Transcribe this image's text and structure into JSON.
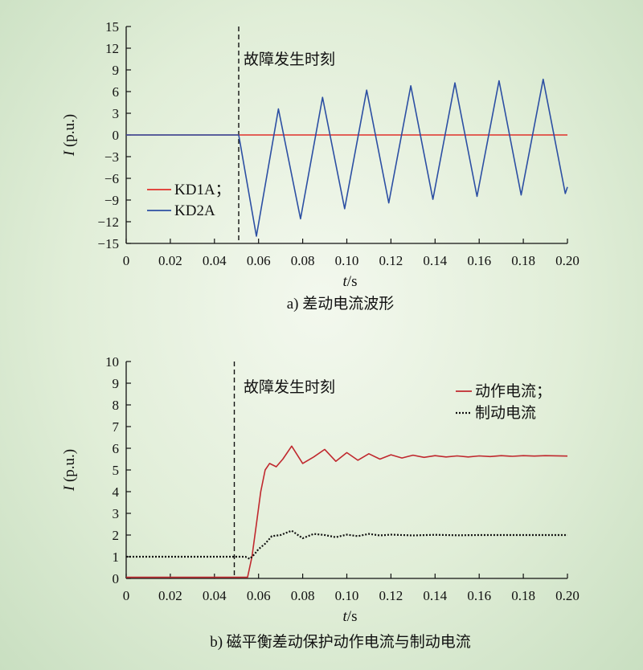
{
  "chart_data": [
    {
      "type": "line",
      "caption": "a) 差动电流波形",
      "xlabel_var": "t",
      "xlabel_unit": "/s",
      "ylabel_var": "I",
      "ylabel_unit": " (p.u.)",
      "xlim": [
        0,
        0.2
      ],
      "ylim": [
        -15,
        15
      ],
      "x_ticks": [
        "0",
        "0.02",
        "0.04",
        "0.06",
        "0.08",
        "0.10",
        "0.12",
        "0.14",
        "0.16",
        "0.18",
        "0.20"
      ],
      "y_ticks": [
        "15",
        "12",
        "9",
        "6",
        "3",
        "0",
        "−3",
        "−6",
        "−9",
        "−12",
        "−15"
      ],
      "fault_time": 0.051,
      "fault_label": "故障发生时刻",
      "legend_position": "lower-left",
      "series": [
        {
          "name": "KD1A；",
          "color": "#e0302a",
          "x": [
            0,
            0.2
          ],
          "values": [
            0,
            0
          ]
        },
        {
          "name": "KD2A",
          "color": "#2c4fa3",
          "x": [
            0,
            0.05,
            0.051,
            0.059,
            0.069,
            0.079,
            0.089,
            0.099,
            0.109,
            0.119,
            0.129,
            0.139,
            0.149,
            0.159,
            0.169,
            0.179,
            0.189,
            0.199,
            0.2
          ],
          "values": [
            0,
            0,
            0,
            -14,
            3.6,
            -11.6,
            5.2,
            -10.2,
            6.2,
            -9.4,
            6.8,
            -8.9,
            7.2,
            -8.5,
            7.5,
            -8.3,
            7.7,
            -8.1,
            -7.2
          ]
        }
      ]
    },
    {
      "type": "line",
      "caption": "b) 磁平衡差动保护动作电流与制动电流",
      "xlabel_var": "t",
      "xlabel_unit": "/s",
      "ylabel_var": "I",
      "ylabel_unit": " (p.u.)",
      "xlim": [
        0,
        0.2
      ],
      "ylim": [
        0,
        10
      ],
      "x_ticks": [
        "0",
        "0.02",
        "0.04",
        "0.06",
        "0.08",
        "0.10",
        "0.12",
        "0.14",
        "0.16",
        "0.18",
        "0.20"
      ],
      "y_ticks": [
        "10",
        "9",
        "8",
        "7",
        "6",
        "5",
        "4",
        "3",
        "2",
        "1",
        "0"
      ],
      "fault_time": 0.049,
      "fault_label": "故障发生时刻",
      "legend_position": "top-right",
      "series": [
        {
          "name": "动作电流；",
          "color": "#c0282e",
          "x": [
            0,
            0.055,
            0.057,
            0.059,
            0.061,
            0.063,
            0.065,
            0.068,
            0.071,
            0.075,
            0.08,
            0.085,
            0.09,
            0.095,
            0.1,
            0.105,
            0.11,
            0.115,
            0.12,
            0.125,
            0.13,
            0.135,
            0.14,
            0.145,
            0.15,
            0.155,
            0.16,
            0.165,
            0.17,
            0.175,
            0.18,
            0.185,
            0.19,
            0.2
          ],
          "values": [
            0.05,
            0.05,
            1.0,
            2.5,
            4.0,
            5.0,
            5.3,
            5.15,
            5.5,
            6.1,
            5.3,
            5.6,
            5.95,
            5.4,
            5.8,
            5.45,
            5.75,
            5.5,
            5.7,
            5.55,
            5.68,
            5.58,
            5.66,
            5.6,
            5.65,
            5.6,
            5.65,
            5.62,
            5.66,
            5.63,
            5.66,
            5.64,
            5.66,
            5.64
          ]
        },
        {
          "name": "制动电流",
          "color": "#111111",
          "x": [
            0,
            0.054,
            0.056,
            0.058,
            0.06,
            0.063,
            0.066,
            0.07,
            0.075,
            0.08,
            0.085,
            0.09,
            0.095,
            0.1,
            0.105,
            0.11,
            0.115,
            0.12,
            0.13,
            0.14,
            0.15,
            0.16,
            0.17,
            0.18,
            0.19,
            0.2
          ],
          "values": [
            1.0,
            1.0,
            0.9,
            1.1,
            1.35,
            1.6,
            1.95,
            2.0,
            2.2,
            1.85,
            2.05,
            2.0,
            1.9,
            2.02,
            1.95,
            2.05,
            1.98,
            2.02,
            1.98,
            2.01,
            1.99,
            2.0,
            2.0,
            2.0,
            2.0,
            2.0
          ]
        }
      ]
    }
  ]
}
